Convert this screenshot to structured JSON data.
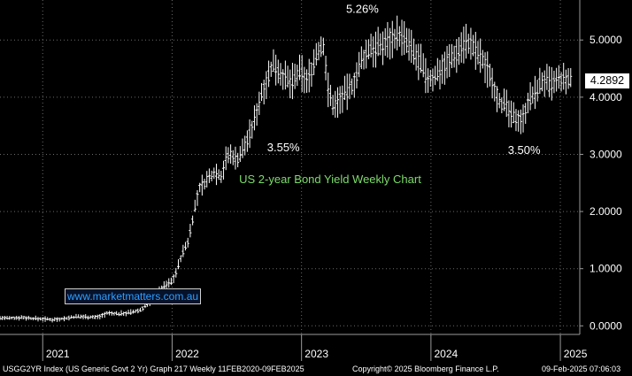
{
  "footer": {
    "left": "USGG2YR Index (US Generic Govt 2 Yr) Graph 217  Weekly 11FEB2020-09FEB2025",
    "center": "Copyright© 2025 Bloomberg Finance L.P.",
    "right": "09-Feb-2025 07:06:03"
  },
  "watermark": "www.marketmatters.com.au",
  "chart_data": {
    "type": "line",
    "style": "weekly-ohlc",
    "title": "US 2-year Bond Yield Weekly Chart",
    "ylim": [
      -0.15,
      5.7
    ],
    "yticks": [
      0.0,
      1.0,
      2.0,
      3.0,
      4.0,
      5.0
    ],
    "ytick_labels": [
      "0.0000",
      "1.0000",
      "2.0000",
      "3.0000",
      "4.0000",
      "5.0000"
    ],
    "xlabels": [
      {
        "label": "2021",
        "x": 2021.0
      },
      {
        "label": "2022",
        "x": 2022.0
      },
      {
        "label": "2023",
        "x": 2023.0
      },
      {
        "label": "2024",
        "x": 2024.0
      },
      {
        "label": "2025",
        "x": 2025.0
      }
    ],
    "xlim": [
      2020.67,
      2025.15
    ],
    "last_value": "4.2892",
    "annotations": [
      {
        "text": "5.26%",
        "x": 2023.47,
        "y": 5.26
      },
      {
        "text": "3.55%",
        "x": 2022.86,
        "y": 3.55
      },
      {
        "text": "3.50%",
        "x": 2024.72,
        "y": 3.5
      }
    ],
    "colors": {
      "bars": "#ffffff",
      "title": "#7ddc6a",
      "grid": "#6a6a6a",
      "watermark_text": "#2f9fff"
    },
    "series": [
      {
        "points": [
          [
            2020.67,
            0.14
          ],
          [
            2020.75,
            0.13
          ],
          [
            2020.83,
            0.15
          ],
          [
            2020.92,
            0.13
          ],
          [
            2021.0,
            0.12
          ],
          [
            2021.08,
            0.11
          ],
          [
            2021.17,
            0.13
          ],
          [
            2021.25,
            0.16
          ],
          [
            2021.33,
            0.16
          ],
          [
            2021.42,
            0.15
          ],
          [
            2021.5,
            0.22
          ],
          [
            2021.58,
            0.21
          ],
          [
            2021.67,
            0.23
          ],
          [
            2021.75,
            0.27
          ],
          [
            2021.83,
            0.42
          ],
          [
            2021.88,
            0.55
          ],
          [
            2021.92,
            0.66
          ],
          [
            2021.96,
            0.73
          ],
          [
            2022.0,
            0.78
          ],
          [
            2022.04,
            1.0
          ],
          [
            2022.08,
            1.28
          ],
          [
            2022.12,
            1.45
          ],
          [
            2022.17,
            2.0
          ],
          [
            2022.21,
            2.4
          ],
          [
            2022.25,
            2.5
          ],
          [
            2022.29,
            2.6
          ],
          [
            2022.33,
            2.7
          ],
          [
            2022.38,
            2.62
          ],
          [
            2022.42,
            2.95
          ],
          [
            2022.46,
            3.0
          ],
          [
            2022.5,
            2.9
          ],
          [
            2022.54,
            3.05
          ],
          [
            2022.58,
            3.25
          ],
          [
            2022.62,
            3.45
          ],
          [
            2022.67,
            3.9
          ],
          [
            2022.71,
            4.2
          ],
          [
            2022.75,
            4.4
          ],
          [
            2022.79,
            4.6
          ],
          [
            2022.83,
            4.45
          ],
          [
            2022.88,
            4.3
          ],
          [
            2022.92,
            4.25
          ],
          [
            2022.96,
            4.35
          ],
          [
            2023.0,
            4.45
          ],
          [
            2023.04,
            4.25
          ],
          [
            2023.08,
            4.5
          ],
          [
            2023.12,
            4.78
          ],
          [
            2023.17,
            4.9
          ],
          [
            2023.21,
            4.05
          ],
          [
            2023.25,
            3.85
          ],
          [
            2023.29,
            3.95
          ],
          [
            2023.33,
            4.05
          ],
          [
            2023.38,
            4.15
          ],
          [
            2023.42,
            4.35
          ],
          [
            2023.46,
            4.6
          ],
          [
            2023.5,
            4.75
          ],
          [
            2023.54,
            4.9
          ],
          [
            2023.58,
            4.85
          ],
          [
            2023.62,
            4.9
          ],
          [
            2023.67,
            5.0
          ],
          [
            2023.71,
            5.05
          ],
          [
            2023.75,
            5.1
          ],
          [
            2023.79,
            5.0
          ],
          [
            2023.83,
            4.9
          ],
          [
            2023.88,
            4.7
          ],
          [
            2023.92,
            4.6
          ],
          [
            2023.96,
            4.35
          ],
          [
            2024.0,
            4.3
          ],
          [
            2024.04,
            4.4
          ],
          [
            2024.08,
            4.5
          ],
          [
            2024.12,
            4.6
          ],
          [
            2024.17,
            4.7
          ],
          [
            2024.21,
            4.8
          ],
          [
            2024.25,
            4.95
          ],
          [
            2024.29,
            4.95
          ],
          [
            2024.33,
            4.85
          ],
          [
            2024.38,
            4.7
          ],
          [
            2024.42,
            4.55
          ],
          [
            2024.46,
            4.4
          ],
          [
            2024.5,
            4.1
          ],
          [
            2024.54,
            3.9
          ],
          [
            2024.58,
            3.85
          ],
          [
            2024.62,
            3.65
          ],
          [
            2024.67,
            3.65
          ],
          [
            2024.71,
            3.6
          ],
          [
            2024.75,
            3.95
          ],
          [
            2024.79,
            4.0
          ],
          [
            2024.83,
            4.2
          ],
          [
            2024.88,
            4.3
          ],
          [
            2024.92,
            4.2
          ],
          [
            2024.96,
            4.25
          ],
          [
            2025.0,
            4.3
          ],
          [
            2025.04,
            4.28
          ],
          [
            2025.08,
            4.29
          ]
        ]
      }
    ]
  }
}
